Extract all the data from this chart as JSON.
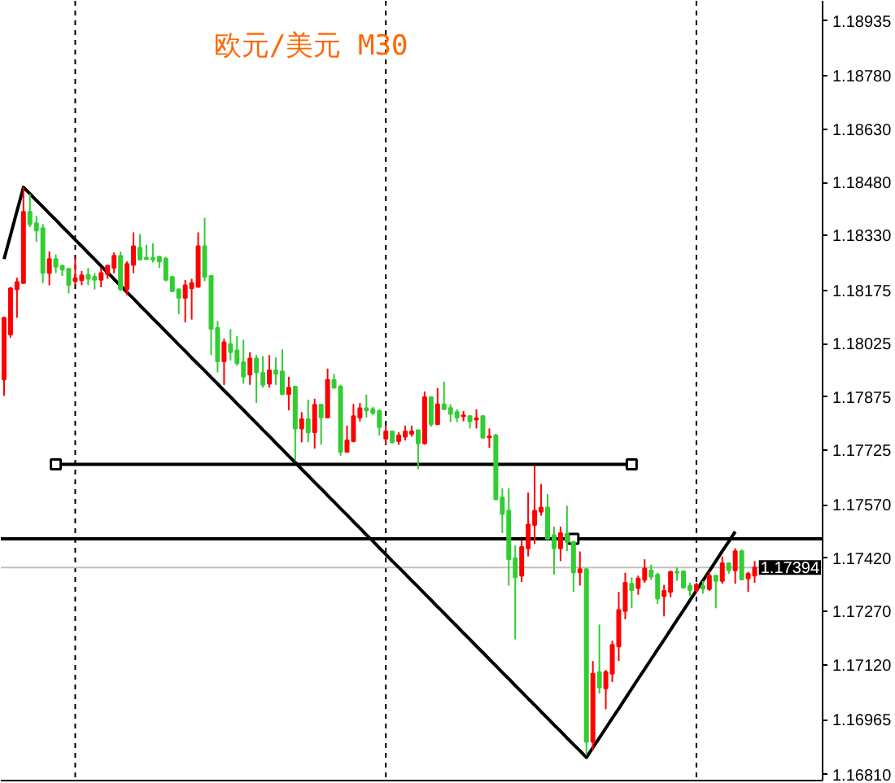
{
  "chart_data": {
    "type": "candlestick",
    "title": "欧元/美元 M30",
    "tick_labels": "y",
    "categories": [
      null,
      null,
      null,
      null,
      null,
      null,
      null,
      null,
      null,
      null,
      null,
      null,
      null,
      null,
      null,
      null,
      null,
      null,
      null,
      null,
      null,
      null,
      null,
      null,
      null,
      null,
      null,
      null,
      null,
      null,
      null,
      null,
      null,
      null,
      null,
      null,
      null,
      null,
      null,
      null,
      null,
      null,
      null,
      null,
      null,
      null,
      null,
      null,
      null,
      null,
      null,
      null,
      null,
      null,
      null,
      null,
      null,
      null,
      null,
      null,
      null,
      null,
      null,
      null,
      null,
      null,
      null,
      null,
      null,
      null,
      null,
      null,
      null,
      null,
      null,
      null,
      null,
      null,
      null,
      null,
      null,
      null,
      null,
      null,
      null,
      null,
      null,
      null,
      null,
      null,
      null,
      null,
      null,
      null,
      null,
      null,
      null,
      null,
      null,
      null,
      null,
      null,
      null,
      null,
      null,
      null,
      null,
      null,
      null,
      null,
      null,
      null,
      null,
      null,
      null,
      null,
      null,
      null,
      null,
      null,
      null,
      null,
      null,
      null,
      null,
      null,
      null
    ],
    "ohlc": [
      [
        1.17924,
        1.18101,
        1.17878,
        1.18098
      ],
      [
        1.18051,
        1.18185,
        1.18042,
        1.18181
      ],
      [
        1.18178,
        1.18211,
        1.18098,
        1.18199
      ],
      [
        1.18196,
        1.18466,
        1.18193,
        1.18397
      ],
      [
        1.18397,
        1.18447,
        1.18354,
        1.18362
      ],
      [
        1.18365,
        1.18385,
        1.18313,
        1.18344
      ],
      [
        1.18351,
        1.18362,
        1.18196,
        1.18224
      ],
      [
        1.18224,
        1.18285,
        1.1819,
        1.18264
      ],
      [
        1.18264,
        1.18277,
        1.18224,
        1.18242
      ],
      [
        1.18244,
        1.18248,
        1.18216,
        1.18234
      ],
      [
        1.18236,
        1.18239,
        1.18167,
        1.18191
      ],
      [
        1.18201,
        1.18267,
        1.1819,
        1.1821
      ],
      [
        1.18204,
        1.1823,
        1.1819,
        1.18218
      ],
      [
        1.18219,
        1.18239,
        1.1819,
        1.18208
      ],
      [
        1.18214,
        1.18224,
        1.18178,
        1.18205
      ],
      [
        1.18205,
        1.18239,
        1.18184,
        1.18224
      ],
      [
        1.18221,
        1.18248,
        1.18208,
        1.18245
      ],
      [
        1.18239,
        1.18282,
        1.18224,
        1.18273
      ],
      [
        1.18273,
        1.18285,
        1.18174,
        1.18178
      ],
      [
        1.18178,
        1.18257,
        1.18162,
        1.1825
      ],
      [
        1.18247,
        1.18339,
        1.18224,
        1.183
      ],
      [
        1.18296,
        1.18334,
        1.18262,
        1.18262
      ],
      [
        1.18267,
        1.18304,
        1.18261,
        1.18264
      ],
      [
        1.18267,
        1.18308,
        1.18254,
        1.18262
      ],
      [
        1.1827,
        1.18273,
        1.18239,
        1.18257
      ],
      [
        1.18265,
        1.1827,
        1.18201,
        1.18205
      ],
      [
        1.18213,
        1.18216,
        1.1817,
        1.18173
      ],
      [
        1.18178,
        1.18181,
        1.18108,
        1.18154
      ],
      [
        1.18154,
        1.18205,
        1.18085,
        1.1819
      ],
      [
        1.18181,
        1.18208,
        1.18093,
        1.18196
      ],
      [
        1.18185,
        1.18339,
        1.18185,
        1.183
      ],
      [
        1.183,
        1.1838,
        1.18201,
        1.18213
      ],
      [
        1.18216,
        1.18218,
        1.17993,
        1.18067
      ],
      [
        1.1807,
        1.18089,
        1.17944,
        1.17975
      ],
      [
        1.17975,
        1.18039,
        1.17909,
        1.18029
      ],
      [
        1.18024,
        1.18066,
        1.17978,
        1.18001
      ],
      [
        1.18006,
        1.18047,
        1.17963,
        1.1797
      ],
      [
        1.17973,
        1.18036,
        1.17912,
        1.17932
      ],
      [
        1.17938,
        1.18001,
        1.17909,
        1.17983
      ],
      [
        1.17983,
        1.17993,
        1.17858,
        1.17944
      ],
      [
        1.17943,
        1.1799,
        1.17901,
        1.17909
      ],
      [
        1.17912,
        1.17993,
        1.17901,
        1.1795
      ],
      [
        1.1795,
        1.17986,
        1.17909,
        1.1794
      ],
      [
        1.17947,
        1.18009,
        1.1788,
        1.17883
      ],
      [
        1.17883,
        1.17932,
        1.17837,
        1.17901
      ],
      [
        1.17904,
        1.17904,
        1.17694,
        1.17786
      ],
      [
        1.17786,
        1.17832,
        1.17747,
        1.17812
      ],
      [
        1.17812,
        1.17867,
        1.17747,
        1.17775
      ],
      [
        1.17775,
        1.1787,
        1.17729,
        1.17853
      ],
      [
        1.17853,
        1.17855,
        1.1774,
        1.17817
      ],
      [
        1.17817,
        1.17955,
        1.17815,
        1.17923
      ],
      [
        1.17923,
        1.1794,
        1.17898,
        1.17901
      ],
      [
        1.17904,
        1.17909,
        1.17709,
        1.1772
      ],
      [
        1.1772,
        1.17794,
        1.17718,
        1.17752
      ],
      [
        1.1775,
        1.17855,
        1.17747,
        1.17821
      ],
      [
        1.17817,
        1.17858,
        1.17806,
        1.17843
      ],
      [
        1.17843,
        1.17881,
        1.17817,
        1.17837
      ],
      [
        1.1784,
        1.17847,
        1.17824,
        1.1783
      ],
      [
        1.17835,
        1.1784,
        1.17766,
        1.1779
      ],
      [
        1.17757,
        1.17794,
        1.1774,
        1.17778
      ],
      [
        1.17778,
        1.17778,
        1.17744,
        1.17747
      ],
      [
        1.1775,
        1.17775,
        1.1774,
        1.17766
      ],
      [
        1.17763,
        1.17794,
        1.17752,
        1.17778
      ],
      [
        1.17771,
        1.17794,
        1.17763,
        1.17778
      ],
      [
        1.17781,
        1.17781,
        1.17671,
        1.17744
      ],
      [
        1.17744,
        1.1789,
        1.1774,
        1.17874
      ],
      [
        1.17874,
        1.17876,
        1.17791,
        1.17798
      ],
      [
        1.17798,
        1.179,
        1.17796,
        1.17854
      ],
      [
        1.17854,
        1.17918,
        1.17838,
        1.1784
      ],
      [
        1.17844,
        1.17854,
        1.17804,
        1.17827
      ],
      [
        1.17832,
        1.1784,
        1.17804,
        1.17817
      ],
      [
        1.1782,
        1.17835,
        1.17806,
        1.17823
      ],
      [
        1.17821,
        1.17823,
        1.17786,
        1.17806
      ],
      [
        1.17811,
        1.1784,
        1.17786,
        1.17815
      ],
      [
        1.17821,
        1.17824,
        1.17758,
        1.1776
      ],
      [
        1.17761,
        1.17786,
        1.17731,
        1.17764
      ],
      [
        1.17766,
        1.17771,
        1.17584,
        1.17586
      ],
      [
        1.17591,
        1.17617,
        1.17491,
        1.17545
      ],
      [
        1.17554,
        1.17617,
        1.17343,
        1.17417
      ],
      [
        1.1742,
        1.17456,
        1.17191,
        1.17366
      ],
      [
        1.17371,
        1.17471,
        1.17353,
        1.17452
      ],
      [
        1.17448,
        1.17605,
        1.17425,
        1.17515
      ],
      [
        1.17514,
        1.17681,
        1.1746,
        1.17554
      ],
      [
        1.17551,
        1.17629,
        1.1754,
        1.17563
      ],
      [
        1.17563,
        1.17601,
        1.17473,
        1.17475
      ],
      [
        1.17485,
        1.17509,
        1.17374,
        1.17448
      ],
      [
        1.17448,
        1.17509,
        1.17412,
        1.17491
      ],
      [
        1.17489,
        1.17568,
        1.1744,
        1.17466
      ],
      [
        1.17466,
        1.17468,
        1.17325,
        1.1738
      ],
      [
        1.1738,
        1.17439,
        1.17343,
        1.17389
      ],
      [
        1.17389,
        1.17391,
        1.16864,
        1.16902
      ],
      [
        1.16902,
        1.1713,
        1.16879,
        1.17094
      ],
      [
        1.17099,
        1.17233,
        1.17038,
        1.17056
      ],
      [
        1.17053,
        1.17105,
        1.16994,
        1.17099
      ],
      [
        1.17094,
        1.17187,
        1.17071,
        1.17176
      ],
      [
        1.17171,
        1.17325,
        1.1713,
        1.17274
      ],
      [
        1.17271,
        1.17379,
        1.17248,
        1.17351
      ],
      [
        1.17348,
        1.17366,
        1.17279,
        1.1733
      ],
      [
        1.17336,
        1.17371,
        1.17317,
        1.17363
      ],
      [
        1.17359,
        1.17417,
        1.17351,
        1.17391
      ],
      [
        1.17386,
        1.17402,
        1.17359,
        1.17368
      ],
      [
        1.17374,
        1.17379,
        1.17291,
        1.17306
      ],
      [
        1.17313,
        1.17345,
        1.17256,
        1.17328
      ],
      [
        1.17325,
        1.17384,
        1.1731,
        1.17382
      ],
      [
        1.17382,
        1.17394,
        1.17356,
        1.17379
      ],
      [
        1.17383,
        1.17386,
        1.17336,
        1.17337
      ],
      [
        1.17342,
        1.17351,
        1.17313,
        1.1733
      ],
      [
        1.1733,
        1.17351,
        1.1732,
        1.17345
      ],
      [
        1.17343,
        1.17356,
        1.1732,
        1.17334
      ],
      [
        1.17333,
        1.17382,
        1.17328,
        1.17371
      ],
      [
        1.17371,
        1.17373,
        1.17279,
        1.17356
      ],
      [
        1.17356,
        1.17425,
        1.17348,
        1.17406
      ],
      [
        1.17406,
        1.17408,
        1.17376,
        1.17386
      ],
      [
        1.17386,
        1.17448,
        1.17348,
        1.1744
      ],
      [
        1.1744,
        1.17445,
        1.17358,
        1.1736
      ],
      [
        1.17363,
        1.17382,
        1.17325,
        1.17376
      ],
      [
        1.17371,
        1.17412,
        1.17351,
        1.17394
      ],
      null,
      null,
      null,
      null,
      null,
      null,
      null,
      null,
      null,
      null
    ],
    "colors": [
      "#ff0000",
      "#ff0000",
      "#ff0000",
      "#ff0000",
      "#32cd32",
      "#32cd32",
      "#32cd32",
      "#ff0000",
      "#32cd32",
      "#32cd32",
      "#32cd32",
      "#ff0000",
      "#ff0000",
      "#32cd32",
      "#32cd32",
      "#ff0000",
      "#ff0000",
      "#ff0000",
      "#32cd32",
      "#ff0000",
      "#ff0000",
      "#32cd32",
      "#32cd32",
      "#32cd32",
      "#32cd32",
      "#32cd32",
      "#32cd32",
      "#32cd32",
      "#ff0000",
      "#ff0000",
      "#ff0000",
      "#32cd32",
      "#32cd32",
      "#32cd32",
      "#ff0000",
      "#32cd32",
      "#32cd32",
      "#32cd32",
      "#ff0000",
      "#32cd32",
      "#32cd32",
      "#ff0000",
      "#32cd32",
      "#32cd32",
      "#ff0000",
      "#32cd32",
      "#ff0000",
      "#32cd32",
      "#ff0000",
      "#32cd32",
      "#ff0000",
      "#32cd32",
      "#32cd32",
      "#ff0000",
      "#ff0000",
      "#ff0000",
      "#32cd32",
      "#32cd32",
      "#32cd32",
      "#ff0000",
      "#32cd32",
      "#ff0000",
      "#ff0000",
      "#ff0000",
      "#32cd32",
      "#ff0000",
      "#32cd32",
      "#ff0000",
      "#32cd32",
      "#32cd32",
      "#32cd32",
      "#ff0000",
      "#32cd32",
      "#ff0000",
      "#32cd32",
      "#ff0000",
      "#32cd32",
      "#32cd32",
      "#32cd32",
      "#32cd32",
      "#ff0000",
      "#ff0000",
      "#ff0000",
      "#ff0000",
      "#32cd32",
      "#32cd32",
      "#ff0000",
      "#32cd32",
      "#32cd32",
      "#ff0000",
      "#32cd32",
      "#ff0000",
      "#32cd32",
      "#ff0000",
      "#ff0000",
      "#ff0000",
      "#ff0000",
      "#32cd32",
      "#ff0000",
      "#ff0000",
      "#32cd32",
      "#32cd32",
      "#ff0000",
      "#ff0000",
      "#32cd32",
      "#32cd32",
      "#32cd32",
      "#ff0000",
      "#32cd32",
      "#ff0000",
      "#32cd32",
      "#ff0000",
      "#32cd32",
      "#ff0000",
      "#32cd32",
      "#ff0000",
      "#ff0000",
      null,
      null,
      null,
      null,
      null,
      null,
      null,
      null,
      null,
      null
    ],
    "series": [
      {
        "type": "line",
        "color": "#000000",
        "values": [
          1.18264,
          1.18331,
          1.18399,
          1.18466,
          1.18448,
          1.18429,
          1.18411,
          1.18392,
          1.18374,
          1.18355,
          1.18337,
          1.18318,
          1.183,
          1.18281,
          1.18263,
          1.18244,
          1.18226,
          1.18207,
          1.18189,
          1.1817,
          1.18152,
          1.18133,
          1.18115,
          1.18096,
          1.18078,
          1.18059,
          1.18041,
          1.18022,
          1.18004,
          1.17985,
          1.17967,
          1.17949,
          1.1793,
          1.17912,
          1.17893,
          1.17875,
          1.17856,
          1.17838,
          1.17819,
          1.17801,
          1.17782,
          1.17764,
          1.17745,
          1.17727,
          1.17708,
          1.1769,
          1.17671,
          1.17653,
          1.17634,
          1.17616,
          1.17597,
          1.17579,
          1.1756,
          1.17542,
          1.17523,
          1.17505,
          1.17486,
          1.17468,
          1.17449,
          1.17431,
          1.17412,
          1.17394,
          1.17376,
          1.17357,
          1.17339,
          1.1732,
          1.17302,
          1.17283,
          1.17265,
          1.17246,
          1.17228,
          1.17209,
          1.17191,
          1.17172,
          1.17154,
          1.17135,
          1.17117,
          1.17098,
          1.1708,
          1.17061,
          1.17043,
          1.17024,
          1.17006,
          1.16987,
          1.16969,
          1.1695,
          1.16932,
          1.16913,
          1.16895,
          1.16877,
          1.16858,
          1.16886,
          1.16913,
          1.16941,
          1.16969,
          1.16996,
          1.17024,
          1.17052,
          1.1708,
          1.17107,
          1.17135,
          1.17163,
          1.1719,
          1.17218,
          1.17246,
          1.17273,
          1.17301,
          1.17329,
          1.17357,
          1.17384,
          1.17412,
          1.1744,
          1.17467,
          1.17495,
          null,
          null,
          null,
          null,
          null,
          null,
          null,
          null,
          null,
          null,
          null,
          null,
          null
        ]
      },
      {
        "type": "line",
        "color": "#000000",
        "values": [
          null,
          null,
          null,
          null,
          null,
          null,
          null,
          null,
          1.17685,
          1.17685,
          1.17685,
          1.17685,
          1.17685,
          1.17685,
          1.17685,
          1.17685,
          1.17685,
          1.17685,
          1.17685,
          1.17685,
          1.17685,
          1.17685,
          1.17685,
          1.17685,
          1.17685,
          1.17685,
          1.17685,
          1.17685,
          1.17685,
          1.17685,
          1.17685,
          1.17685,
          1.17685,
          1.17685,
          1.17685,
          1.17685,
          1.17685,
          1.17685,
          1.17685,
          1.17685,
          1.17685,
          1.17685,
          1.17685,
          1.17685,
          1.17685,
          1.17685,
          1.17685,
          1.17685,
          1.17685,
          1.17685,
          1.17685,
          1.17685,
          1.17685,
          1.17685,
          1.17685,
          1.17685,
          1.17685,
          1.17685,
          1.17685,
          1.17685,
          1.17685,
          1.17685,
          1.17685,
          1.17685,
          1.17685,
          1.17685,
          1.17685,
          1.17685,
          1.17685,
          1.17685,
          1.17685,
          1.17685,
          1.17685,
          1.17685,
          1.17685,
          1.17685,
          1.17685,
          1.17685,
          1.17685,
          1.17685,
          1.17685,
          1.17685,
          1.17685,
          1.17685,
          1.17685,
          1.17685,
          1.17685,
          1.17685,
          1.17685,
          1.17685,
          1.17685,
          1.17685,
          1.17685,
          1.17685,
          1.17685,
          1.17685,
          1.17685,
          1.17685,
          null,
          null,
          null,
          null,
          null,
          null,
          null,
          null,
          null,
          null,
          null,
          null,
          null,
          null,
          null,
          null,
          null,
          null,
          null,
          null,
          null,
          null,
          null,
          null,
          null,
          null,
          null,
          null,
          null
        ]
      },
      {
        "type": "scatter",
        "color": "#000000",
        "marker": "square",
        "values": [
          null,
          null,
          null,
          null,
          null,
          null,
          null,
          null,
          1.17685,
          null,
          null,
          null,
          null,
          null,
          null,
          null,
          null,
          null,
          null,
          null,
          null,
          null,
          null,
          null,
          null,
          null,
          null,
          null,
          null,
          null,
          null,
          null,
          null,
          null,
          null,
          null,
          null,
          null,
          null,
          null,
          null,
          null,
          null,
          null,
          null,
          null,
          null,
          null,
          null,
          null,
          null,
          null,
          null,
          null,
          null,
          null,
          null,
          null,
          null,
          null,
          null,
          null,
          null,
          null,
          null,
          null,
          null,
          null,
          null,
          null,
          null,
          null,
          null,
          null,
          null,
          null,
          null,
          null,
          null,
          null,
          null,
          null,
          null,
          null,
          null,
          null,
          null,
          null,
          1.17475,
          null,
          null,
          null,
          null,
          null,
          null,
          null,
          null,
          1.17685,
          null,
          null,
          null,
          null,
          null,
          null,
          null,
          null,
          null,
          null,
          null,
          null,
          null,
          null,
          null,
          null,
          null,
          null,
          null,
          null,
          null,
          null,
          null,
          null,
          null,
          null,
          null,
          null,
          null
        ]
      }
    ],
    "ref_lines": [
      {
        "axis": "y",
        "value": 1.17475,
        "color": "#000000"
      },
      {
        "axis": "y",
        "value": 1.17394,
        "label": "1.17394",
        "color": "#c0c0c0"
      }
    ],
    "ylim": [
      1.16793,
      1.18992
    ],
    "yticks": [
      1.18935,
      {
        "value": 1.1878,
        "label": "1.18780"
      },
      {
        "value": 1.1863,
        "label": "1.18630"
      },
      {
        "value": 1.1848,
        "label": "1.18480"
      },
      {
        "value": 1.1833,
        "label": "1.18330"
      },
      1.18175,
      1.18025,
      1.17875,
      1.17725,
      {
        "value": 1.1757,
        "label": "1.17570"
      },
      {
        "value": 1.1742,
        "label": "1.17420"
      },
      {
        "value": 1.1727,
        "label": "1.17270"
      },
      {
        "value": 1.1712,
        "label": "1.17120"
      },
      1.16965,
      {
        "value": 1.1681,
        "label": "1.16810"
      }
    ]
  }
}
